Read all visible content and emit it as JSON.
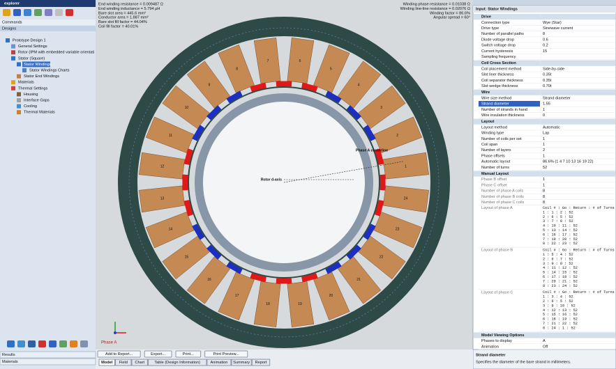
{
  "explorer": {
    "title": "explorer",
    "sections": [
      "Commands",
      "Designs"
    ],
    "tree": [
      "Prototype Design 1",
      "General Settings",
      "Rotor (IPM with embedded variable orientati",
      "Stator (Square)",
      "Stator Windings",
      "Stator Windings Charts",
      "Stator End Windings",
      "Materials",
      "Thermal Settings",
      "Housing",
      "Interface Gaps",
      "Cooling",
      "Thermal Materials"
    ],
    "bottom_tabs": [
      "Results",
      "Materials"
    ]
  },
  "view": {
    "info_left": [
      "End winding resistance = 0.009487 Ω",
      "End winding inductance = 5.794 µH",
      "Bare slot area = 445.6 mm²",
      "Conductor area = 1.887 mm²",
      "Bare slot fill factor = 44.04%",
      "Coil fill factor = 40.01%"
    ],
    "info_right": [
      "Winding phase resistance = 0.01038 Ω",
      "Winding line-line resistance = 0.02076 Ω",
      "Winding factor = 86.6%",
      "Angular spread = 60°"
    ],
    "coil_labels": [
      "1",
      "2",
      "3",
      "4",
      "5",
      "6",
      "7",
      "8",
      "9",
      "10",
      "11",
      "12",
      "13",
      "14",
      "15",
      "16",
      "17",
      "18",
      "19",
      "20",
      "21",
      "22",
      "23",
      "24"
    ],
    "annotations": {
      "centerline": "Phase A centerline",
      "rotor_axis": "Rotor d-axis",
      "phase": "Phase A"
    },
    "buttons": [
      "Add to Report...",
      "Export...",
      "Print...",
      "Print Preview..."
    ],
    "tabs": [
      "Model",
      "Field",
      "Chart",
      "Table (Design Information)",
      "Animation",
      "Summary",
      "Report"
    ]
  },
  "properties": {
    "title": "Input: Stator Windings",
    "sections": [
      {
        "name": "Drive",
        "rows": [
          [
            "Connection type",
            "Wye (Star)"
          ],
          [
            "Drive type",
            "Sinewave current"
          ],
          [
            "Number of parallel paths",
            "8"
          ],
          [
            "Diode voltage drop",
            "0.6"
          ],
          [
            "Switch voltage drop",
            "0.2"
          ],
          [
            "Current hysteresis",
            "15"
          ],
          [
            "Sampling frequency"
          ]
        ]
      },
      {
        "name": "Coil Cross Section",
        "rows": [
          [
            "Coil placement method",
            "Side-by-side"
          ],
          [
            "Slot liner thickness",
            "0.35t"
          ],
          [
            "Coil separator thickness",
            "0.35t"
          ],
          [
            "Slot wedge thickness",
            "0.70t"
          ]
        ]
      },
      {
        "name": "Wire",
        "rows": [
          [
            "Wire size method",
            "Strand diameter"
          ],
          [
            "Strand diameter",
            "1.55"
          ],
          [
            "Number of strands in hand",
            "1"
          ],
          [
            "Wire insulation thickness",
            "0"
          ]
        ]
      },
      {
        "name": "Layout",
        "rows": [
          [
            "Layout method",
            "Automatic"
          ],
          [
            "Winding type",
            "Lap"
          ],
          [
            "Number of coils per set",
            "1"
          ],
          [
            "Coil span",
            "1"
          ],
          [
            "Number of layers",
            "2"
          ],
          [
            "Phase offsets",
            "1"
          ],
          [
            "Automatic layout",
            "86.6% (1 4 7 10 13 16 19 22)"
          ],
          [
            "Number of turns",
            "52"
          ]
        ]
      },
      {
        "name": "Manual Layout",
        "rows": [
          [
            "Phase B offset",
            "1"
          ],
          [
            "Phase C offset",
            "1"
          ],
          [
            "Number of phase A coils",
            "8"
          ],
          [
            "Number of phase B coils",
            "8"
          ],
          [
            "Number of phase C coils",
            "8"
          ]
        ],
        "layouts": [
          {
            "name": "Layout of phase A",
            "lines": [
              "Coil # : Go : Return : # of Turns",
              "1 : 1 : 2 : 52",
              "2 : 6 : 5 : 52",
              "3 : 7 : 8 : 52",
              "4 : 10 : 11 : 52",
              "5 : 13 : 14 : 52",
              "6 : 16 : 17 : 52",
              "7 : 19 : 20 : 52",
              "8 : 22 : 23 : 52"
            ]
          },
          {
            "name": "Layout of phase B",
            "lines": [
              "Coil # : Go : Return : # of Turns",
              "1 : 5 : 4 : 52",
              "2 : 6 : 7 : 52",
              "3 : 9 : 8 : 52",
              "4 : 11 : 12 : 52",
              "5 : 14 : 15 : 52",
              "6 : 17 : 18 : 52",
              "7 : 20 : 21 : 52",
              "8 : 23 : 24 : 52"
            ]
          },
          {
            "name": "Layout of phase C",
            "lines": [
              "Coil # : Go : Return : # of Turns",
              "1 : 3 : 4 : 52",
              "2 : 6 : 5 : 52",
              "3 : 9 : 10 : 52",
              "4 : 12 : 13 : 52",
              "5 : 15 : 16 : 52",
              "6 : 18 : 19 : 52",
              "7 : 21 : 22 : 52",
              "8 : 24 : 1 : 52"
            ]
          }
        ]
      },
      {
        "name": "Model Viewing Options",
        "rows": [
          [
            "Phases to display",
            "A"
          ],
          [
            "Animation",
            "Off"
          ]
        ]
      }
    ],
    "help": {
      "title": "Strand diameter",
      "text": "Specifies the diameter of the bare strand in millimeters."
    }
  }
}
